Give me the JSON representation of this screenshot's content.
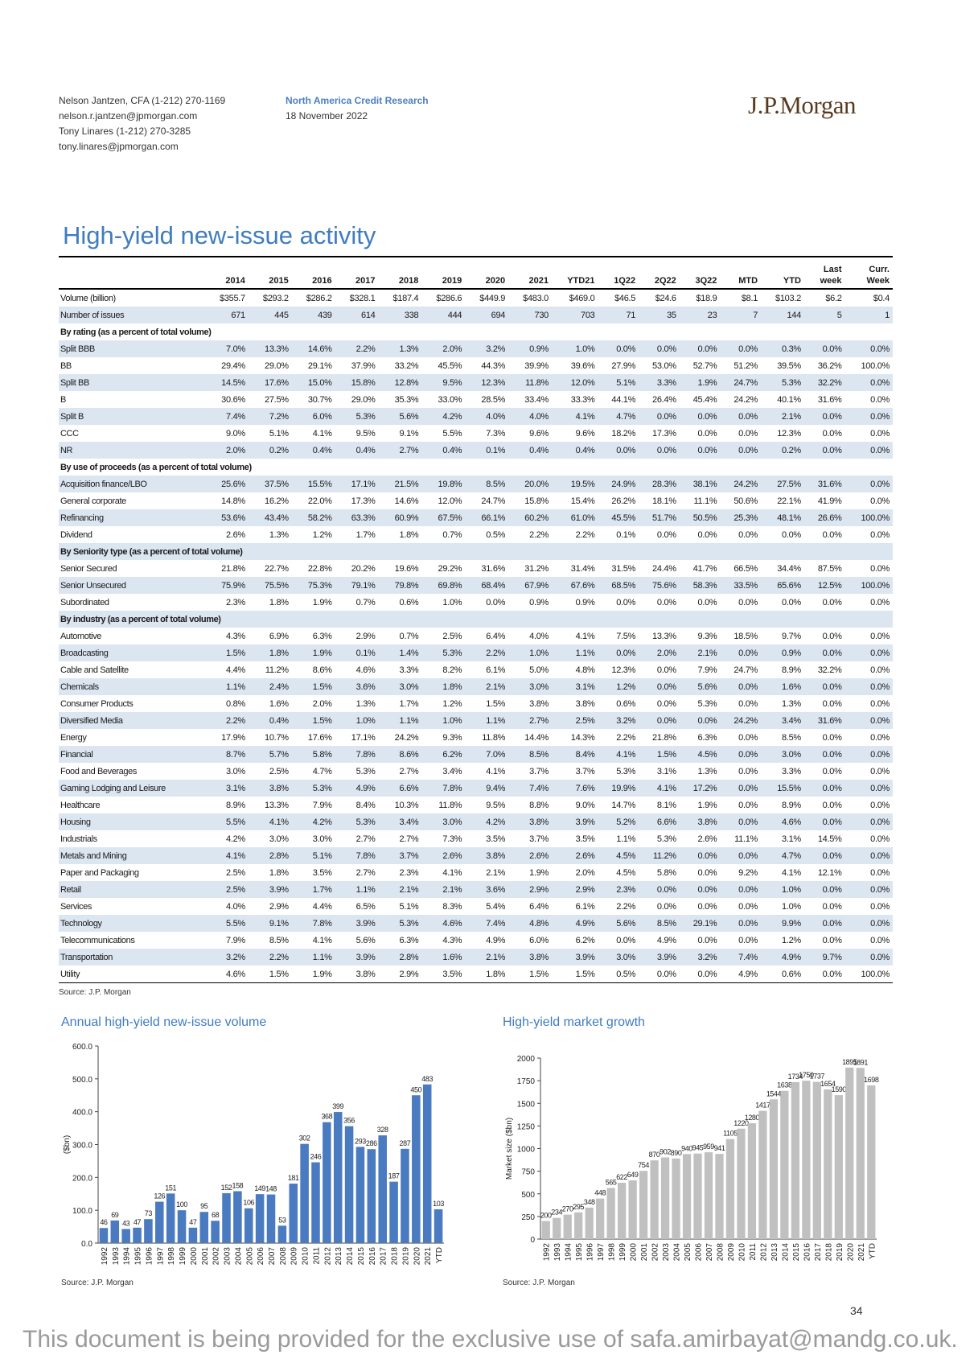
{
  "header": {
    "authors": [
      "Nelson Jantzen, CFA (1-212) 270-1169",
      "nelson.r.jantzen@jpmorgan.com",
      "Tony Linares (1-212) 270-3285",
      "tony.linares@jpmorgan.com"
    ],
    "research_title": "North America Credit Research",
    "date": "18 November 2022",
    "logo": "J.P.Morgan"
  },
  "title": "High-yield new-issue activity",
  "table": {
    "columns": [
      "",
      "2014",
      "2015",
      "2016",
      "2017",
      "2018",
      "2019",
      "2020",
      "2021",
      "YTD21",
      "1Q22",
      "2Q22",
      "3Q22",
      "MTD",
      "YTD",
      "Last week",
      "Curr. Week"
    ],
    "rows": [
      {
        "type": "data",
        "cells": [
          "Volume (billion)",
          "$355.7",
          "$293.2",
          "$286.2",
          "$328.1",
          "$187.4",
          "$286.6",
          "$449.9",
          "$483.0",
          "$469.0",
          "$46.5",
          "$24.6",
          "$18.9",
          "$8.1",
          "$103.2",
          "$6.2",
          "$0.4"
        ]
      },
      {
        "type": "data",
        "cells": [
          "Number of issues",
          "671",
          "445",
          "439",
          "614",
          "338",
          "444",
          "694",
          "730",
          "703",
          "71",
          "35",
          "23",
          "7",
          "144",
          "5",
          "1"
        ]
      },
      {
        "type": "section",
        "cells": [
          "By rating (as a percent of total volume)"
        ]
      },
      {
        "type": "data",
        "cells": [
          "Split BBB",
          "7.0%",
          "13.3%",
          "14.6%",
          "2.2%",
          "1.3%",
          "2.0%",
          "3.2%",
          "0.9%",
          "1.0%",
          "0.0%",
          "0.0%",
          "0.0%",
          "0.0%",
          "0.3%",
          "0.0%",
          "0.0%"
        ]
      },
      {
        "type": "data",
        "cells": [
          "BB",
          "29.4%",
          "29.0%",
          "29.1%",
          "37.9%",
          "33.2%",
          "45.5%",
          "44.3%",
          "39.9%",
          "39.6%",
          "27.9%",
          "53.0%",
          "52.7%",
          "51.2%",
          "39.5%",
          "36.2%",
          "100.0%"
        ]
      },
      {
        "type": "data",
        "cells": [
          "Split BB",
          "14.5%",
          "17.6%",
          "15.0%",
          "15.8%",
          "12.8%",
          "9.5%",
          "12.3%",
          "11.8%",
          "12.0%",
          "5.1%",
          "3.3%",
          "1.9%",
          "24.7%",
          "5.3%",
          "32.2%",
          "0.0%"
        ]
      },
      {
        "type": "data",
        "cells": [
          "B",
          "30.6%",
          "27.5%",
          "30.7%",
          "29.0%",
          "35.3%",
          "33.0%",
          "28.5%",
          "33.4%",
          "33.3%",
          "44.1%",
          "26.4%",
          "45.4%",
          "24.2%",
          "40.1%",
          "31.6%",
          "0.0%"
        ]
      },
      {
        "type": "data",
        "cells": [
          "Split B",
          "7.4%",
          "7.2%",
          "6.0%",
          "5.3%",
          "5.6%",
          "4.2%",
          "4.0%",
          "4.0%",
          "4.1%",
          "4.7%",
          "0.0%",
          "0.0%",
          "0.0%",
          "2.1%",
          "0.0%",
          "0.0%"
        ]
      },
      {
        "type": "data",
        "cells": [
          "CCC",
          "9.0%",
          "5.1%",
          "4.1%",
          "9.5%",
          "9.1%",
          "5.5%",
          "7.3%",
          "9.6%",
          "9.6%",
          "18.2%",
          "17.3%",
          "0.0%",
          "0.0%",
          "12.3%",
          "0.0%",
          "0.0%"
        ]
      },
      {
        "type": "data",
        "cells": [
          "NR",
          "2.0%",
          "0.2%",
          "0.4%",
          "0.4%",
          "2.7%",
          "0.4%",
          "0.1%",
          "0.4%",
          "0.4%",
          "0.0%",
          "0.0%",
          "0.0%",
          "0.0%",
          "0.2%",
          "0.0%",
          "0.0%"
        ]
      },
      {
        "type": "section",
        "cells": [
          "By use of proceeds (as a percent of total volume)"
        ]
      },
      {
        "type": "data",
        "cells": [
          "Acquisition finance/LBO",
          "25.6%",
          "37.5%",
          "15.5%",
          "17.1%",
          "21.5%",
          "19.8%",
          "8.5%",
          "20.0%",
          "19.5%",
          "24.9%",
          "28.3%",
          "38.1%",
          "24.2%",
          "27.5%",
          "31.6%",
          "0.0%"
        ]
      },
      {
        "type": "data",
        "cells": [
          "General corporate",
          "14.8%",
          "16.2%",
          "22.0%",
          "17.3%",
          "14.6%",
          "12.0%",
          "24.7%",
          "15.8%",
          "15.4%",
          "26.2%",
          "18.1%",
          "11.1%",
          "50.6%",
          "22.1%",
          "41.9%",
          "0.0%"
        ]
      },
      {
        "type": "data",
        "cells": [
          "Refinancing",
          "53.6%",
          "43.4%",
          "58.2%",
          "63.3%",
          "60.9%",
          "67.5%",
          "66.1%",
          "60.2%",
          "61.0%",
          "45.5%",
          "51.7%",
          "50.5%",
          "25.3%",
          "48.1%",
          "26.6%",
          "100.0%"
        ]
      },
      {
        "type": "data",
        "cells": [
          "Dividend",
          "2.6%",
          "1.3%",
          "1.2%",
          "1.7%",
          "1.8%",
          "0.7%",
          "0.5%",
          "2.2%",
          "2.2%",
          "0.1%",
          "0.0%",
          "0.0%",
          "0.0%",
          "0.0%",
          "0.0%",
          "0.0%"
        ]
      },
      {
        "type": "section",
        "cells": [
          "By Seniority type (as a percent of total volume)"
        ]
      },
      {
        "type": "data",
        "cells": [
          "Senior Secured",
          "21.8%",
          "22.7%",
          "22.8%",
          "20.2%",
          "19.6%",
          "29.2%",
          "31.6%",
          "31.2%",
          "31.4%",
          "31.5%",
          "24.4%",
          "41.7%",
          "66.5%",
          "34.4%",
          "87.5%",
          "0.0%"
        ]
      },
      {
        "type": "data",
        "cells": [
          "Senior Unsecured",
          "75.9%",
          "75.5%",
          "75.3%",
          "79.1%",
          "79.8%",
          "69.8%",
          "68.4%",
          "67.9%",
          "67.6%",
          "68.5%",
          "75.6%",
          "58.3%",
          "33.5%",
          "65.6%",
          "12.5%",
          "100.0%"
        ]
      },
      {
        "type": "data",
        "cells": [
          "Subordinated",
          "2.3%",
          "1.8%",
          "1.9%",
          "0.7%",
          "0.6%",
          "1.0%",
          "0.0%",
          "0.9%",
          "0.9%",
          "0.0%",
          "0.0%",
          "0.0%",
          "0.0%",
          "0.0%",
          "0.0%",
          "0.0%"
        ]
      },
      {
        "type": "section",
        "cells": [
          "By industry (as a percent of total volume)"
        ]
      },
      {
        "type": "data",
        "cells": [
          "Automotive",
          "4.3%",
          "6.9%",
          "6.3%",
          "2.9%",
          "0.7%",
          "2.5%",
          "6.4%",
          "4.0%",
          "4.1%",
          "7.5%",
          "13.3%",
          "9.3%",
          "18.5%",
          "9.7%",
          "0.0%",
          "0.0%"
        ]
      },
      {
        "type": "data",
        "cells": [
          "Broadcasting",
          "1.5%",
          "1.8%",
          "1.9%",
          "0.1%",
          "1.4%",
          "5.3%",
          "2.2%",
          "1.0%",
          "1.1%",
          "0.0%",
          "2.0%",
          "2.1%",
          "0.0%",
          "0.9%",
          "0.0%",
          "0.0%"
        ]
      },
      {
        "type": "data",
        "cells": [
          "Cable and Satellite",
          "4.4%",
          "11.2%",
          "8.6%",
          "4.6%",
          "3.3%",
          "8.2%",
          "6.1%",
          "5.0%",
          "4.8%",
          "12.3%",
          "0.0%",
          "7.9%",
          "24.7%",
          "8.9%",
          "32.2%",
          "0.0%"
        ]
      },
      {
        "type": "data",
        "cells": [
          "Chemicals",
          "1.1%",
          "2.4%",
          "1.5%",
          "3.6%",
          "3.0%",
          "1.8%",
          "2.1%",
          "3.0%",
          "3.1%",
          "1.2%",
          "0.0%",
          "5.6%",
          "0.0%",
          "1.6%",
          "0.0%",
          "0.0%"
        ]
      },
      {
        "type": "data",
        "cells": [
          "Consumer Products",
          "0.8%",
          "1.6%",
          "2.0%",
          "1.3%",
          "1.7%",
          "1.2%",
          "1.5%",
          "3.8%",
          "3.8%",
          "0.6%",
          "0.0%",
          "5.3%",
          "0.0%",
          "1.3%",
          "0.0%",
          "0.0%"
        ]
      },
      {
        "type": "data",
        "cells": [
          "Diversified Media",
          "2.2%",
          "0.4%",
          "1.5%",
          "1.0%",
          "1.1%",
          "1.0%",
          "1.1%",
          "2.7%",
          "2.5%",
          "3.2%",
          "0.0%",
          "0.0%",
          "24.2%",
          "3.4%",
          "31.6%",
          "0.0%"
        ]
      },
      {
        "type": "data",
        "cells": [
          "Energy",
          "17.9%",
          "10.7%",
          "17.6%",
          "17.1%",
          "24.2%",
          "9.3%",
          "11.8%",
          "14.4%",
          "14.3%",
          "2.2%",
          "21.8%",
          "6.3%",
          "0.0%",
          "8.5%",
          "0.0%",
          "0.0%"
        ]
      },
      {
        "type": "data",
        "cells": [
          "Financial",
          "8.7%",
          "5.7%",
          "5.8%",
          "7.8%",
          "8.6%",
          "6.2%",
          "7.0%",
          "8.5%",
          "8.4%",
          "4.1%",
          "1.5%",
          "4.5%",
          "0.0%",
          "3.0%",
          "0.0%",
          "0.0%"
        ]
      },
      {
        "type": "data",
        "cells": [
          "Food and Beverages",
          "3.0%",
          "2.5%",
          "4.7%",
          "5.3%",
          "2.7%",
          "3.4%",
          "4.1%",
          "3.7%",
          "3.7%",
          "5.3%",
          "3.1%",
          "1.3%",
          "0.0%",
          "3.3%",
          "0.0%",
          "0.0%"
        ]
      },
      {
        "type": "data",
        "cells": [
          "Gaming Lodging and Leisure",
          "3.1%",
          "3.8%",
          "5.3%",
          "4.9%",
          "6.6%",
          "7.8%",
          "9.4%",
          "7.4%",
          "7.6%",
          "19.9%",
          "4.1%",
          "17.2%",
          "0.0%",
          "15.5%",
          "0.0%",
          "0.0%"
        ]
      },
      {
        "type": "data",
        "cells": [
          "Healthcare",
          "8.9%",
          "13.3%",
          "7.9%",
          "8.4%",
          "10.3%",
          "11.8%",
          "9.5%",
          "8.8%",
          "9.0%",
          "14.7%",
          "8.1%",
          "1.9%",
          "0.0%",
          "8.9%",
          "0.0%",
          "0.0%"
        ]
      },
      {
        "type": "data",
        "cells": [
          "Housing",
          "5.5%",
          "4.1%",
          "4.2%",
          "5.3%",
          "3.4%",
          "3.0%",
          "4.2%",
          "3.8%",
          "3.9%",
          "5.2%",
          "6.6%",
          "3.8%",
          "0.0%",
          "4.6%",
          "0.0%",
          "0.0%"
        ]
      },
      {
        "type": "data",
        "cells": [
          "Industrials",
          "4.2%",
          "3.0%",
          "3.0%",
          "2.7%",
          "2.7%",
          "7.3%",
          "3.5%",
          "3.7%",
          "3.5%",
          "1.1%",
          "5.3%",
          "2.6%",
          "11.1%",
          "3.1%",
          "14.5%",
          "0.0%"
        ]
      },
      {
        "type": "data",
        "cells": [
          "Metals and Mining",
          "4.1%",
          "2.8%",
          "5.1%",
          "7.8%",
          "3.7%",
          "2.6%",
          "3.8%",
          "2.6%",
          "2.6%",
          "4.5%",
          "11.2%",
          "0.0%",
          "0.0%",
          "4.7%",
          "0.0%",
          "0.0%"
        ]
      },
      {
        "type": "data",
        "cells": [
          "Paper and Packaging",
          "2.5%",
          "1.8%",
          "3.5%",
          "2.7%",
          "2.3%",
          "4.1%",
          "2.1%",
          "1.9%",
          "2.0%",
          "4.5%",
          "5.8%",
          "0.0%",
          "9.2%",
          "4.1%",
          "12.1%",
          "0.0%"
        ]
      },
      {
        "type": "data",
        "cells": [
          "Retail",
          "2.5%",
          "3.9%",
          "1.7%",
          "1.1%",
          "2.1%",
          "2.1%",
          "3.6%",
          "2.9%",
          "2.9%",
          "2.3%",
          "0.0%",
          "0.0%",
          "0.0%",
          "1.0%",
          "0.0%",
          "0.0%"
        ]
      },
      {
        "type": "data",
        "cells": [
          "Services",
          "4.0%",
          "2.9%",
          "4.4%",
          "6.5%",
          "5.1%",
          "8.3%",
          "5.4%",
          "6.4%",
          "6.1%",
          "2.2%",
          "0.0%",
          "0.0%",
          "0.0%",
          "1.0%",
          "0.0%",
          "0.0%"
        ]
      },
      {
        "type": "data",
        "cells": [
          "Technology",
          "5.5%",
          "9.1%",
          "7.8%",
          "3.9%",
          "5.3%",
          "4.6%",
          "7.4%",
          "4.8%",
          "4.9%",
          "5.6%",
          "8.5%",
          "29.1%",
          "0.0%",
          "9.9%",
          "0.0%",
          "0.0%"
        ]
      },
      {
        "type": "data",
        "cells": [
          "Telecommunications",
          "7.9%",
          "8.5%",
          "4.1%",
          "5.6%",
          "6.3%",
          "4.3%",
          "4.9%",
          "6.0%",
          "6.2%",
          "0.0%",
          "4.9%",
          "0.0%",
          "0.0%",
          "1.2%",
          "0.0%",
          "0.0%"
        ]
      },
      {
        "type": "data",
        "cells": [
          "Transportation",
          "3.2%",
          "2.2%",
          "1.1%",
          "3.9%",
          "2.8%",
          "1.6%",
          "2.1%",
          "3.8%",
          "3.9%",
          "3.0%",
          "3.9%",
          "3.2%",
          "7.4%",
          "4.9%",
          "9.7%",
          "0.0%"
        ]
      },
      {
        "type": "data",
        "cells": [
          "Utility",
          "4.6%",
          "1.5%",
          "1.9%",
          "3.8%",
          "2.9%",
          "3.5%",
          "1.8%",
          "1.5%",
          "1.5%",
          "0.5%",
          "0.0%",
          "0.0%",
          "4.9%",
          "0.6%",
          "0.0%",
          "100.0%"
        ]
      }
    ],
    "source": "Source: J.P. Morgan"
  },
  "chart_data": [
    {
      "type": "bar",
      "title": "Annual high-yield new-issue volume",
      "ylabel": "($bn)",
      "xlabel": "",
      "ylim": [
        0,
        600
      ],
      "yticks": [
        "0.0",
        "100.0",
        "200.0",
        "300.0",
        "400.0",
        "500.0",
        "600.0"
      ],
      "bar_color": "#4a7bc0",
      "categories": [
        "1992",
        "1993",
        "1994",
        "1995",
        "1996",
        "1997",
        "1998",
        "1999",
        "2000",
        "2001",
        "2002",
        "2003",
        "2004",
        "2005",
        "2006",
        "2007",
        "2008",
        "2009",
        "2010",
        "2011",
        "2012",
        "2013",
        "2014",
        "2015",
        "2016",
        "2017",
        "2018",
        "2019",
        "2020",
        "2021",
        "YTD"
      ],
      "values": [
        46,
        69,
        43,
        47,
        73,
        126,
        151,
        100,
        47,
        95,
        68,
        152,
        158,
        106,
        149,
        148,
        53,
        181,
        302,
        246,
        368,
        399,
        356,
        293,
        286,
        328,
        187,
        287,
        450,
        483,
        103
      ],
      "source": "Source: J.P. Morgan"
    },
    {
      "type": "bar",
      "title": "High-yield market growth",
      "ylabel": "Market size ($bn)",
      "xlabel": "",
      "ylim": [
        0,
        2000
      ],
      "yticks": [
        "0",
        "250",
        "500",
        "750",
        "1000",
        "1250",
        "1500",
        "1750",
        "2000"
      ],
      "bar_color": "#c0c0c0",
      "categories": [
        "1992",
        "1993",
        "1994",
        "1995",
        "1996",
        "1997",
        "1998",
        "1999",
        "2000",
        "2001",
        "2002",
        "2003",
        "2004",
        "2005",
        "2006",
        "2007",
        "2008",
        "2009",
        "2010",
        "2011",
        "2012",
        "2013",
        "2014",
        "2015",
        "2016",
        "2017",
        "2018",
        "2019",
        "2020",
        "2021",
        "YTD"
      ],
      "values": [
        200,
        234,
        270,
        295,
        348,
        448,
        565,
        622,
        649,
        754,
        870,
        902,
        890,
        940,
        945,
        959,
        941,
        1105,
        1220,
        1280,
        1417,
        1544,
        1638,
        1734,
        1750,
        1737,
        1654,
        1590,
        1895,
        1891,
        1698
      ],
      "source": "Source: J.P. Morgan"
    }
  ],
  "footer": {
    "page_number": "34",
    "watermark": "This document is being provided for the exclusive use of safa.amirbayat@mandg.co.uk."
  }
}
